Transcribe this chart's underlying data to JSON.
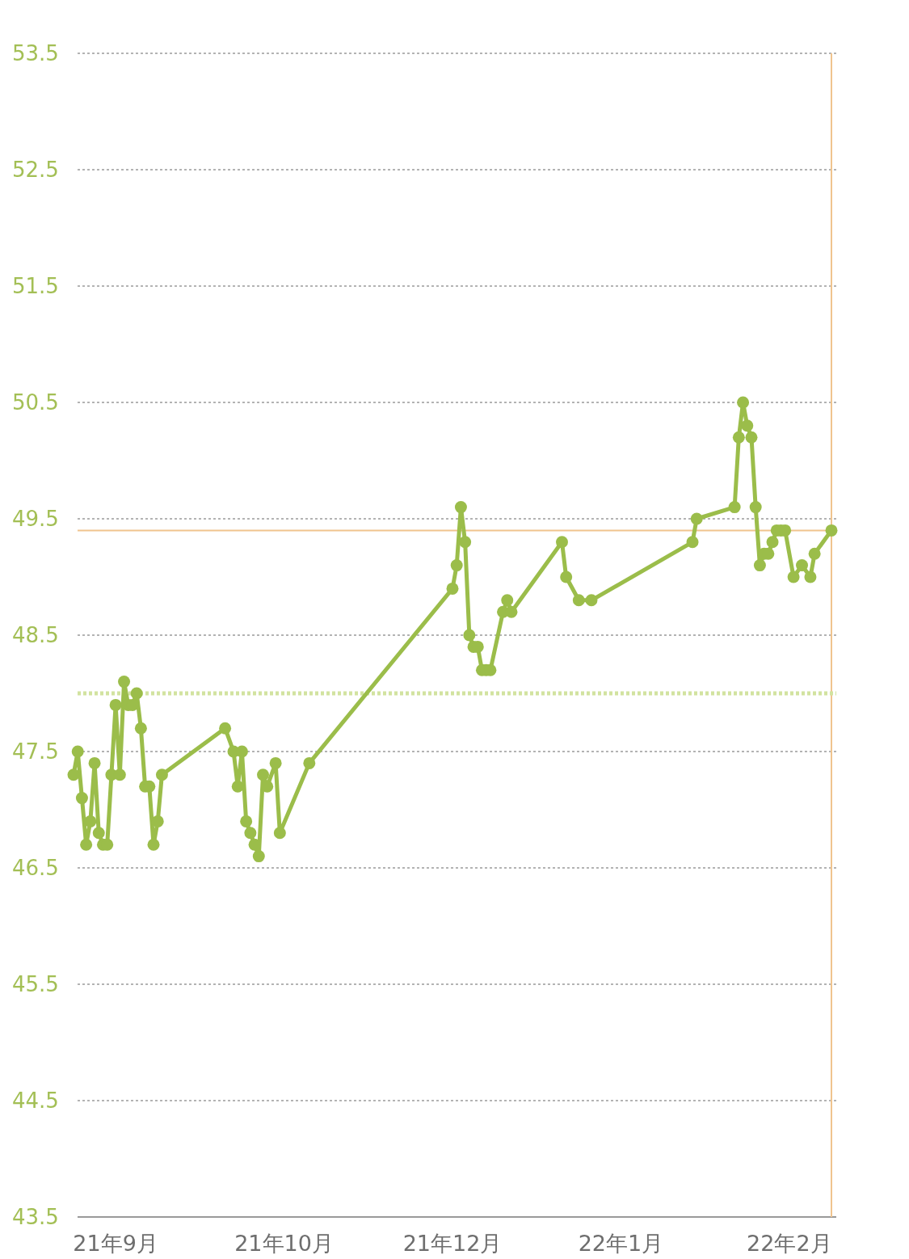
{
  "chart_data": {
    "type": "line",
    "categories": [
      null,
      null,
      null,
      null,
      null,
      null,
      null,
      null,
      null,
      null,
      "21年9月",
      null,
      null,
      null,
      null,
      null,
      null,
      null,
      null,
      null,
      null,
      null,
      null,
      null,
      null,
      null,
      null,
      null,
      null,
      null,
      null,
      null,
      null,
      null,
      null,
      null,
      null,
      null,
      null,
      null,
      null,
      null,
      null,
      null,
      null,
      null,
      null,
      null,
      null,
      null,
      "21年10月",
      null,
      null,
      null,
      null,
      null,
      null,
      null,
      null,
      null,
      null,
      null,
      null,
      null,
      null,
      null,
      null,
      null,
      null,
      null,
      null,
      null,
      null,
      null,
      null,
      null,
      null,
      null,
      null,
      null,
      null,
      null,
      null,
      null,
      null,
      null,
      null,
      null,
      null,
      null,
      "21年12月",
      null,
      null,
      null,
      null,
      null,
      null,
      null,
      null,
      null,
      null,
      null,
      null,
      null,
      null,
      null,
      null,
      null,
      null,
      null,
      null,
      null,
      null,
      null,
      null,
      null,
      null,
      null,
      null,
      null,
      null,
      null,
      null,
      null,
      null,
      null,
      null,
      null,
      null,
      null,
      "22年1月",
      null,
      null,
      null,
      null,
      null,
      null,
      null,
      null,
      null,
      null,
      null,
      null,
      null,
      null,
      null,
      null,
      null,
      null,
      null,
      null,
      null,
      null,
      null,
      null,
      null,
      null,
      null,
      null,
      null,
      null,
      null,
      null,
      null,
      null,
      null,
      null,
      null,
      null,
      null,
      "22年2月",
      null,
      null,
      null,
      null,
      null,
      null,
      null,
      null,
      null,
      null
    ],
    "series": [
      {
        "color": "#9bbd4a",
        "values": [
          47.3,
          47.5,
          47.1,
          46.7,
          46.9,
          47.4,
          46.8,
          46.7,
          46.7,
          47.3,
          47.9,
          47.3,
          48.1,
          47.9,
          47.9,
          48.0,
          47.7,
          47.2,
          47.2,
          46.7,
          46.9,
          47.3,
          null,
          null,
          null,
          null,
          null,
          null,
          null,
          null,
          null,
          null,
          null,
          null,
          null,
          null,
          47.7,
          null,
          47.5,
          47.2,
          47.5,
          46.9,
          46.8,
          46.7,
          46.6,
          47.3,
          47.2,
          null,
          47.4,
          46.8,
          null,
          null,
          null,
          null,
          null,
          null,
          47.4,
          null,
          null,
          null,
          null,
          null,
          null,
          null,
          null,
          null,
          null,
          null,
          null,
          null,
          null,
          null,
          null,
          null,
          null,
          null,
          null,
          null,
          null,
          null,
          null,
          null,
          null,
          null,
          null,
          null,
          null,
          null,
          null,
          null,
          48.9,
          49.1,
          49.6,
          49.3,
          48.5,
          48.4,
          48.4,
          48.2,
          48.2,
          48.2,
          null,
          null,
          48.7,
          48.8,
          48.7,
          null,
          null,
          null,
          null,
          null,
          null,
          null,
          null,
          null,
          null,
          null,
          49.3,
          49.0,
          null,
          null,
          48.8,
          null,
          null,
          48.8,
          null,
          null,
          null,
          null,
          null,
          null,
          null,
          null,
          null,
          null,
          null,
          null,
          null,
          null,
          null,
          null,
          null,
          null,
          null,
          null,
          null,
          null,
          null,
          49.3,
          49.5,
          null,
          null,
          null,
          null,
          null,
          null,
          null,
          null,
          49.6,
          50.2,
          50.5,
          50.3,
          50.2,
          49.6,
          49.1,
          49.2,
          49.2,
          49.3,
          49.4,
          49.4,
          49.4,
          null,
          49.0,
          null,
          49.1,
          null,
          49.0,
          49.2,
          null,
          null,
          null,
          49.4
        ]
      }
    ],
    "ylim": [
      43.5,
      53.5
    ],
    "yticks": [
      43.5,
      44.5,
      45.5,
      46.5,
      47.5,
      48.5,
      49.5,
      50.5,
      51.5,
      52.5,
      53.5
    ],
    "grid": "y",
    "marker": "circle",
    "line_style": "solid",
    "ref_lines": [
      {
        "axis": "y",
        "value": 49.4,
        "color": "#f0c48e",
        "line_style": "solid"
      },
      {
        "axis": "y",
        "value": 48.0,
        "color": "#d2e3a0",
        "line_style": "dotted"
      }
    ]
  }
}
